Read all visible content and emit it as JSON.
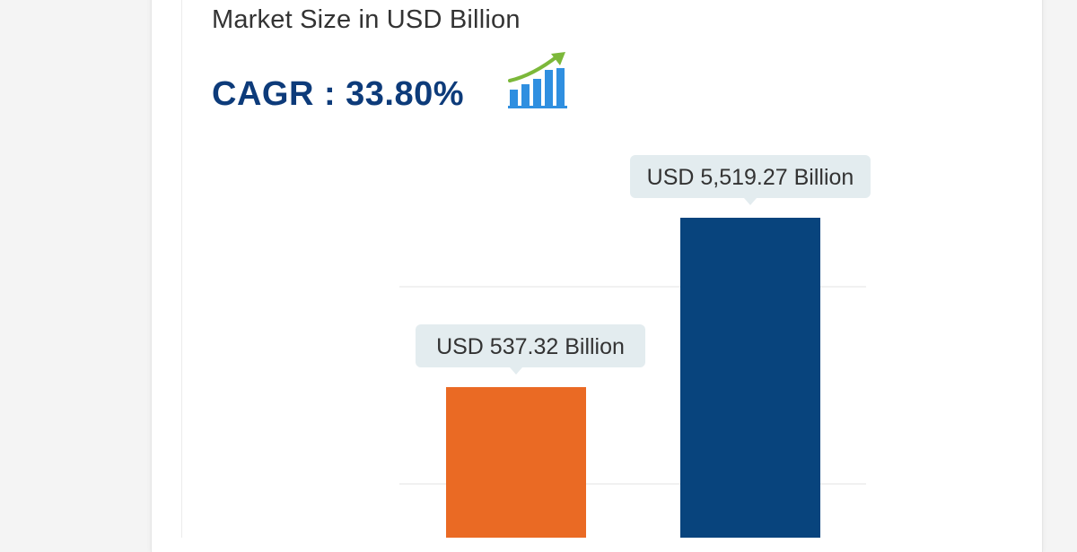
{
  "header": {
    "subtitle": "Market Size in USD Billion",
    "cagr_text": "CAGR : 33.80%"
  },
  "icons": {
    "growth": "bar-growth-arrow-icon"
  },
  "colors": {
    "cagr": "#0d3b7a",
    "bar_1": "#ea6a24",
    "bar_2": "#08447d",
    "tooltip_bg": "#e3ecef",
    "icon_bars": "#2f8fe0",
    "icon_arrow": "#7cb83a"
  },
  "chart_data": {
    "type": "bar",
    "categories": [
      "",
      ""
    ],
    "values": [
      537.32,
      5519.27
    ],
    "data_labels": [
      "USD 537.32 Billion",
      "USD 5,519.27 Billion"
    ],
    "colors": [
      "#ea6a24",
      "#08447d"
    ],
    "title": "",
    "xlabel": "",
    "ylabel": "",
    "grid": true
  }
}
